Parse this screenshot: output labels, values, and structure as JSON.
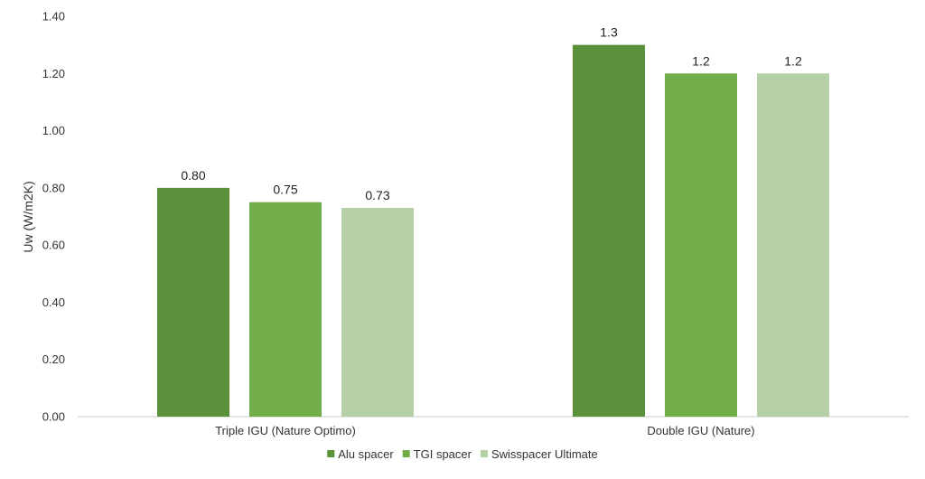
{
  "chart_data": {
    "type": "bar",
    "categories": [
      "Triple IGU (Nature Optimo)",
      "Double IGU (Nature)"
    ],
    "series": [
      {
        "name": "Alu spacer",
        "values": [
          0.8,
          1.3
        ],
        "labels": [
          "0.80",
          "1.3"
        ],
        "color": "#5b913b"
      },
      {
        "name": "TGI spacer",
        "values": [
          0.75,
          1.2
        ],
        "labels": [
          "0.75",
          "1.2"
        ],
        "color": "#71ad48"
      },
      {
        "name": "Swisspacer Ultimate",
        "values": [
          0.73,
          1.2
        ],
        "labels": [
          "0.73",
          "1.2"
        ],
        "color": "#b5cfa7"
      }
    ],
    "title": "",
    "xlabel": "",
    "ylabel": "Uw (W/m2K)",
    "ylim": [
      0,
      1.4
    ],
    "yticks": [
      "0.00",
      "0.20",
      "0.40",
      "0.60",
      "0.80",
      "1.00",
      "1.20",
      "1.40"
    ],
    "grid": false,
    "legend_position": "bottom"
  }
}
